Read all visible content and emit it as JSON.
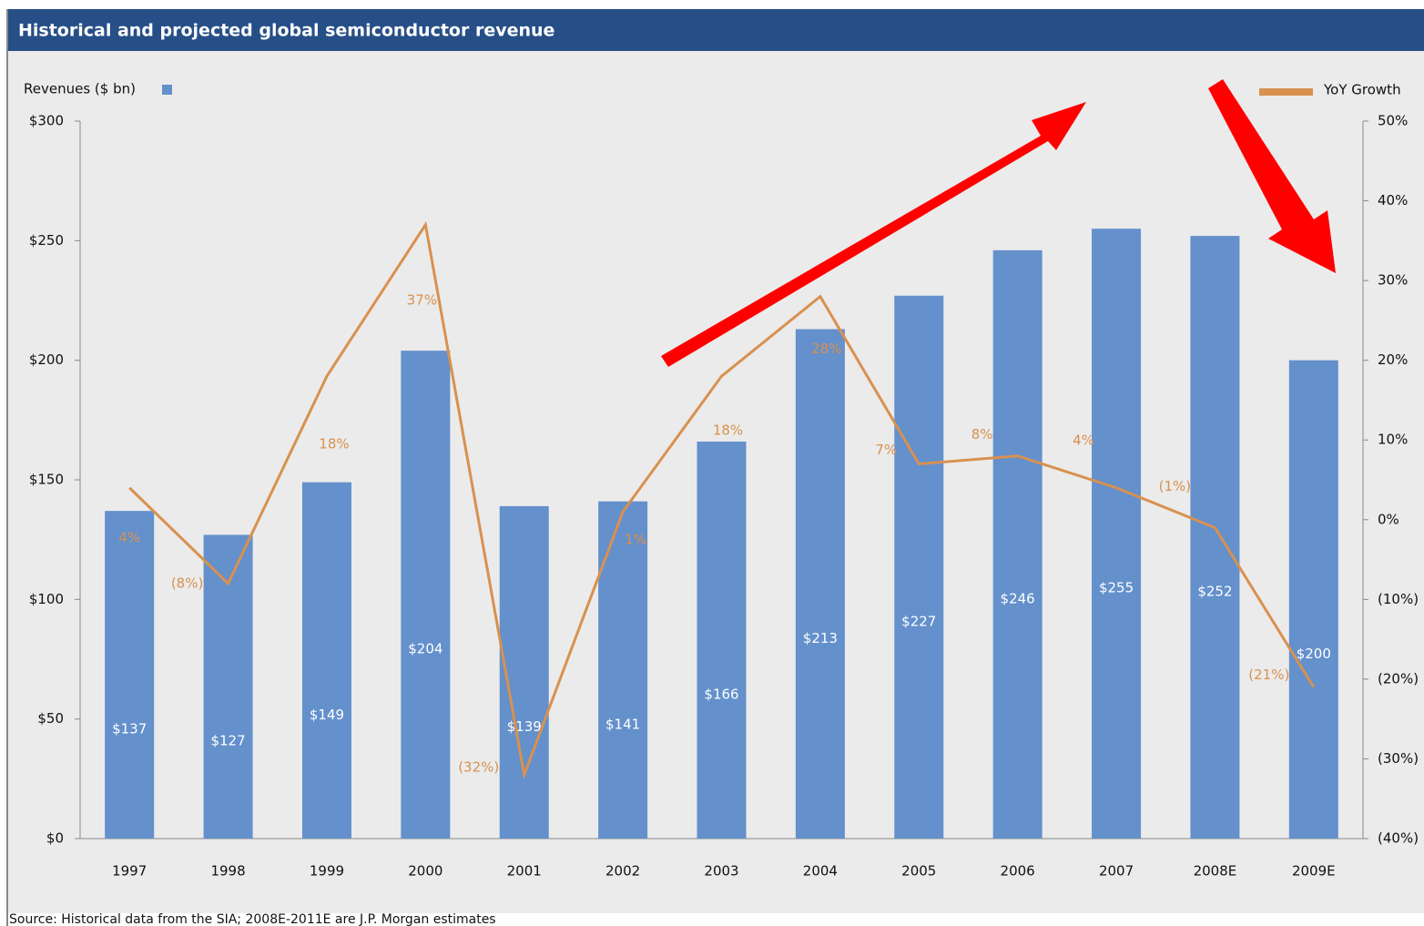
{
  "chart_data": {
    "type": "bar_line",
    "title": "Historical and projected global semiconductor revenue",
    "source": "Source: Historical data from the SIA; 2008E-2011E are J.P. Morgan estimates",
    "categories": [
      "1997",
      "1998",
      "1999",
      "2000",
      "2001",
      "2002",
      "2003",
      "2004",
      "2005",
      "2006",
      "2007",
      "2008E",
      "2009E"
    ],
    "series": [
      {
        "name": "Revenues ($ bn)",
        "type": "bar",
        "color": "#6490cc",
        "values": [
          137,
          127,
          149,
          204,
          139,
          141,
          166,
          213,
          227,
          246,
          255,
          252,
          200
        ],
        "value_labels": [
          "$137",
          "$127",
          "$149",
          "$204",
          "$139",
          "$141",
          "$166",
          "$213",
          "$227",
          "$246",
          "$255",
          "$252",
          "$200"
        ]
      },
      {
        "name": "YoY Growth",
        "type": "line",
        "axis": "y2",
        "color": "#d8914f",
        "values": [
          4,
          -8,
          18,
          37,
          -32,
          1,
          18,
          28,
          7,
          8,
          4,
          -1,
          -21
        ],
        "value_labels": [
          "4%",
          "(8%)",
          "18%",
          "37%",
          "(32%)",
          "1%",
          "18%",
          "28%",
          "7%",
          "8%",
          "4%",
          "(1%)",
          "(21%)"
        ]
      }
    ],
    "ylim": [
      0,
      300
    ],
    "yticks": [
      {
        "value": 0,
        "label": "$0"
      },
      {
        "value": 50,
        "label": "$50"
      },
      {
        "value": 100,
        "label": "$100"
      },
      {
        "value": 150,
        "label": "$150"
      },
      {
        "value": 200,
        "label": "$200"
      },
      {
        "value": 250,
        "label": "$250"
      },
      {
        "value": 300,
        "label": "$300"
      }
    ],
    "y2lim": [
      -40,
      50
    ],
    "y2ticks": [
      {
        "value": -40,
        "label": "(40%)"
      },
      {
        "value": -30,
        "label": "(30%)"
      },
      {
        "value": -20,
        "label": "(20%)"
      },
      {
        "value": -10,
        "label": "(10%)"
      },
      {
        "value": 0,
        "label": "0%"
      },
      {
        "value": 10,
        "label": "10%"
      },
      {
        "value": 20,
        "label": "20%"
      },
      {
        "value": 30,
        "label": "30%"
      },
      {
        "value": 40,
        "label": "40%"
      },
      {
        "value": 50,
        "label": "50%"
      }
    ]
  }
}
